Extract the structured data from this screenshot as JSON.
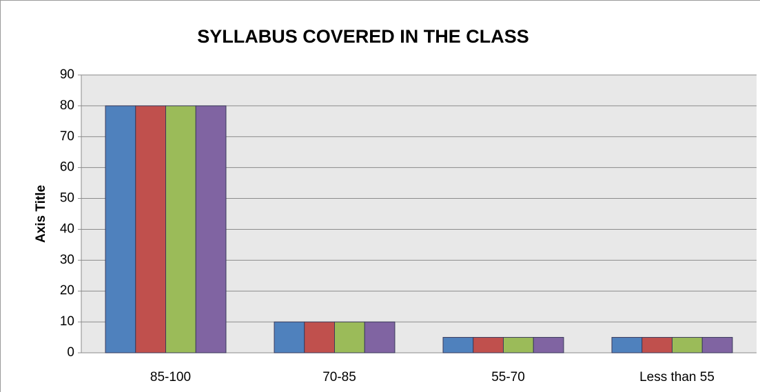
{
  "chart_data": {
    "type": "bar",
    "title": "SYLLABUS  COVERED IN THE CLASS",
    "y_axis_label": "Axis Title",
    "categories": [
      "85-100",
      "70-85",
      "55-70",
      "Less than 55"
    ],
    "series": [
      {
        "color": "#4f81bd",
        "values": [
          80,
          10,
          5,
          5
        ]
      },
      {
        "color": "#c0504d",
        "values": [
          80,
          10,
          5,
          5
        ]
      },
      {
        "color": "#9bbb59",
        "values": [
          80,
          10,
          5,
          5
        ]
      },
      {
        "color": "#8064a2",
        "values": [
          80,
          10,
          5,
          5
        ]
      }
    ],
    "ylim": [
      0,
      90
    ],
    "yticks": [
      0,
      10,
      20,
      30,
      40,
      50,
      60,
      70,
      80,
      90
    ],
    "grid": true
  }
}
